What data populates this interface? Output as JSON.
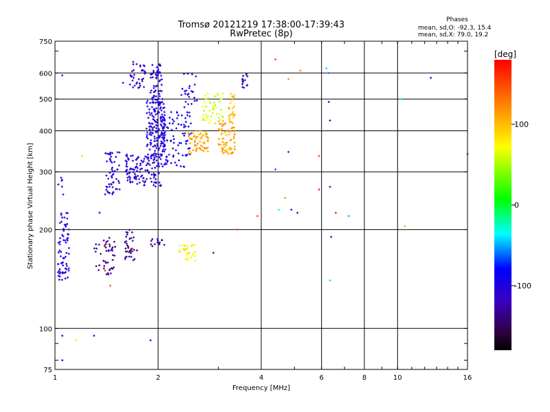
{
  "chart_data": {
    "type": "scatter",
    "title": "Tromsø 20121219 17:38:00-17:39:43",
    "subtitle": "RwPretec (8p)",
    "xlabel": "Frequency [MHz]",
    "ylabel": "Stationary phase Virtual Height [km]",
    "x_scale": "log",
    "y_scale": "log",
    "xlim": [
      1,
      16
    ],
    "ylim": [
      75,
      750
    ],
    "x_ticks": [
      1,
      2,
      4,
      6,
      8,
      10,
      16
    ],
    "y_ticks": [
      75,
      100,
      200,
      300,
      400,
      500,
      600,
      750
    ],
    "grid": true,
    "stats": {
      "heading": "Phases",
      "line_o": "mean, sd,O: -92.3, 15.4",
      "line_x": "mean, sd,X:  79.0, 19.2"
    },
    "colorbar": {
      "label": "[deg]",
      "range": [
        -180,
        180
      ],
      "ticks": [
        100,
        0,
        -100
      ]
    },
    "clusters": [
      {
        "f": [
          1.02,
          1.1
        ],
        "h": [
          140,
          225
        ],
        "phase": -100,
        "n": 70
      },
      {
        "f": [
          1.02,
          1.06
        ],
        "h": [
          255,
          290
        ],
        "phase": -100,
        "n": 6
      },
      {
        "f": [
          1.4,
          1.55
        ],
        "h": [
          255,
          345
        ],
        "phase": -105,
        "n": 55
      },
      {
        "f": [
          1.3,
          1.5
        ],
        "h": [
          145,
          190
        ],
        "phase": -135,
        "n": 45
      },
      {
        "f": [
          1.6,
          1.75
        ],
        "h": [
          160,
          200
        ],
        "phase": -135,
        "n": 35
      },
      {
        "f": [
          1.65,
          1.85
        ],
        "h": [
          540,
          650
        ],
        "phase": -110,
        "n": 35
      },
      {
        "f": [
          1.6,
          2.05
        ],
        "h": [
          270,
          340
        ],
        "phase": -105,
        "n": 130
      },
      {
        "f": [
          1.85,
          2.1
        ],
        "h": [
          330,
          500
        ],
        "phase": -100,
        "n": 160
      },
      {
        "f": [
          1.9,
          2.05
        ],
        "h": [
          480,
          640
        ],
        "phase": -105,
        "n": 55
      },
      {
        "f": [
          2.05,
          2.5
        ],
        "h": [
          310,
          460
        ],
        "phase": -95,
        "n": 90
      },
      {
        "f": [
          2.3,
          2.6
        ],
        "h": [
          460,
          600
        ],
        "phase": -100,
        "n": 25
      },
      {
        "f": [
          2.45,
          2.8
        ],
        "h": [
          340,
          400
        ],
        "phase": 110,
        "n": 60
      },
      {
        "f": [
          2.7,
          3.1
        ],
        "h": [
          420,
          520
        ],
        "phase": 60,
        "n": 45
      },
      {
        "f": [
          3.0,
          3.35
        ],
        "h": [
          340,
          430
        ],
        "phase": 110,
        "n": 75
      },
      {
        "f": [
          3.2,
          3.35
        ],
        "h": [
          430,
          520
        ],
        "phase": 100,
        "n": 25
      },
      {
        "f": [
          2.3,
          2.6
        ],
        "h": [
          160,
          180
        ],
        "phase": 75,
        "n": 30
      },
      {
        "f": [
          1.9,
          2.1
        ],
        "h": [
          178,
          188
        ],
        "phase": -130,
        "n": 14
      },
      {
        "f": [
          3.5,
          3.65
        ],
        "h": [
          530,
          600
        ],
        "phase": -120,
        "n": 15
      }
    ],
    "isolated_points": [
      [
        1.05,
        590,
        -100
      ],
      [
        1.05,
        95,
        -100
      ],
      [
        1.05,
        80,
        -100
      ],
      [
        1.15,
        92,
        80
      ],
      [
        1.2,
        335,
        90
      ],
      [
        1.3,
        95,
        -100
      ],
      [
        1.35,
        225,
        -100
      ],
      [
        1.4,
        150,
        150
      ],
      [
        1.45,
        135,
        150
      ],
      [
        1.4,
        180,
        170
      ],
      [
        1.58,
        560,
        -100
      ],
      [
        1.68,
        175,
        170
      ],
      [
        1.9,
        92,
        -100
      ],
      [
        2.9,
        170,
        -140
      ],
      [
        3.4,
        200,
        160
      ],
      [
        3.9,
        220,
        150
      ],
      [
        4.4,
        305,
        -70
      ],
      [
        4.4,
        660,
        150
      ],
      [
        4.5,
        230,
        -30
      ],
      [
        4.7,
        250,
        120
      ],
      [
        4.8,
        345,
        -120
      ],
      [
        4.8,
        575,
        120
      ],
      [
        4.9,
        230,
        -90
      ],
      [
        5.1,
        225,
        -110
      ],
      [
        5.2,
        610,
        120
      ],
      [
        5.9,
        335,
        150
      ],
      [
        5.9,
        265,
        170
      ],
      [
        6.2,
        620,
        -40
      ],
      [
        6.3,
        600,
        -60
      ],
      [
        6.3,
        490,
        -110
      ],
      [
        6.35,
        430,
        -120
      ],
      [
        6.35,
        270,
        -110
      ],
      [
        6.4,
        190,
        -120
      ],
      [
        6.35,
        140,
        -40
      ],
      [
        6.6,
        225,
        170
      ],
      [
        7.2,
        220,
        -50
      ],
      [
        10.5,
        205,
        110
      ],
      [
        12.5,
        580,
        -120
      ],
      [
        10.2,
        500,
        -40
      ],
      [
        16,
        340,
        -120
      ]
    ]
  }
}
